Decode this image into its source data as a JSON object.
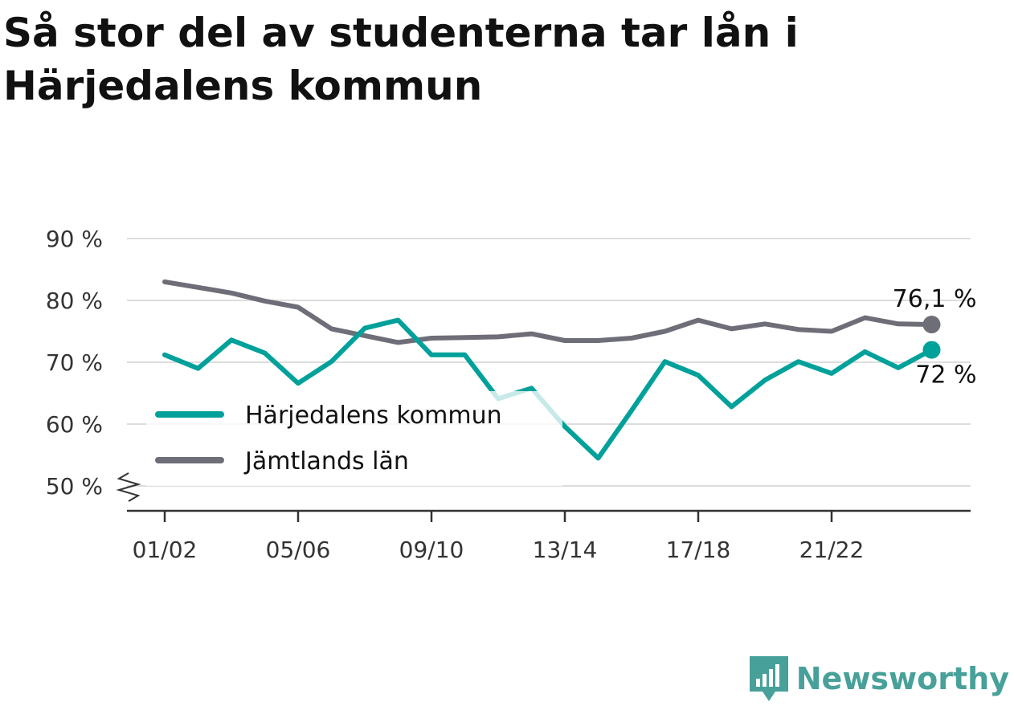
{
  "title": "Så stor del av studenterna tar lån i Härjedalens kommun",
  "brand": {
    "name": "Newsworthy"
  },
  "chart_data": {
    "type": "line",
    "title": "Så stor del av studenterna tar lån i Härjedalens kommun",
    "x": [
      "01/02",
      "02/03",
      "03/04",
      "04/05",
      "05/06",
      "06/07",
      "07/08",
      "08/09",
      "09/10",
      "10/11",
      "11/12",
      "12/13",
      "13/14",
      "14/15",
      "15/16",
      "16/17",
      "17/18",
      "18/19",
      "19/20",
      "20/21",
      "21/22",
      "22/23",
      "23/24",
      "24/25"
    ],
    "x_ticks": [
      "01/02",
      "05/06",
      "09/10",
      "13/14",
      "17/18",
      "21/22"
    ],
    "y_ticks": [
      50,
      60,
      70,
      80,
      90
    ],
    "y_tick_labels": [
      "50 %",
      "60 %",
      "70 %",
      "80 %",
      "90 %"
    ],
    "ylim": [
      50,
      90
    ],
    "y_axis_break": true,
    "grid": true,
    "legend": "left",
    "series": [
      {
        "name": "Härjedalens kommun",
        "color": "#00a19a",
        "values": [
          71.2,
          69.0,
          73.6,
          71.5,
          66.6,
          70.1,
          75.5,
          76.8,
          71.2,
          71.2,
          64.1,
          65.8,
          59.6,
          54.5,
          62.2,
          70.1,
          67.9,
          62.8,
          67.1,
          70.1,
          68.2,
          71.7,
          69.1,
          72.0
        ],
        "end_label": "72 %"
      },
      {
        "name": "Jämtlands län",
        "color": "#6e6e78",
        "values": [
          83.0,
          82.1,
          81.2,
          79.9,
          78.9,
          75.4,
          74.3,
          73.2,
          73.9,
          74.0,
          74.1,
          74.6,
          73.5,
          73.5,
          73.9,
          75.0,
          76.8,
          75.4,
          76.2,
          75.3,
          75.0,
          77.2,
          76.2,
          76.1
        ],
        "end_label": "76,1 %"
      }
    ]
  }
}
